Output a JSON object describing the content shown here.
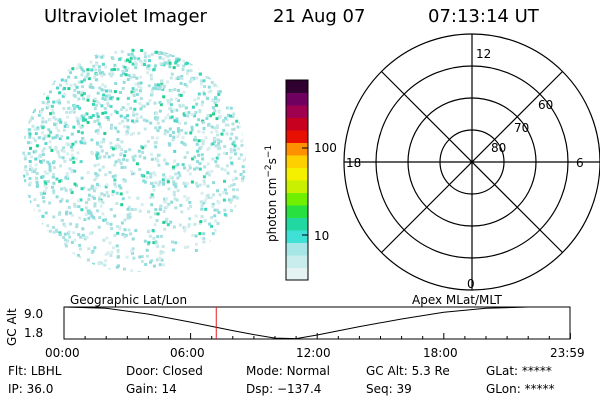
{
  "header": {
    "instrument": "Ultraviolet Imager",
    "date": "21 Aug 07",
    "time": "07:13:14 UT"
  },
  "colorbar": {
    "unit_prefix": "photon cm",
    "unit_exp1": "−2",
    "unit_mid": "s",
    "unit_exp2": "−1",
    "ticks": [
      {
        "label": "100",
        "value": 100
      },
      {
        "label": "10",
        "value": 10
      }
    ],
    "colors": [
      "#e6f3f3",
      "#c9ecec",
      "#a6e6e6",
      "#3fe0d6",
      "#20d8a0",
      "#28e040",
      "#70f000",
      "#c8f000",
      "#f5f000",
      "#ffd000",
      "#ff9000",
      "#e81000",
      "#c80020",
      "#a00050",
      "#700060",
      "#300030"
    ]
  },
  "polar_plot": {
    "mlt_labels": {
      "top": "12",
      "bottom": "0",
      "left": "18",
      "right": "6"
    },
    "lat_labels": [
      "60",
      "70",
      "80"
    ]
  },
  "track_plot": {
    "ylabel": "GC Alt",
    "yticks": [
      "9.0",
      "1.8"
    ],
    "left_title": "Geographic Lat/Lon",
    "right_title": "Apex MLat/MLT",
    "xticks": [
      "00:00",
      "06:00",
      "12:00",
      "18:00",
      "23:59"
    ],
    "cursor_color": "#e02020"
  },
  "chart_data": {
    "type": "line",
    "ylabel": "GC Alt",
    "x": [
      "00:00",
      "02:00",
      "04:00",
      "06:00",
      "08:00",
      "09:00",
      "10:00",
      "11:00",
      "12:00",
      "14:00",
      "16:00",
      "18:00",
      "20:00",
      "22:00",
      "23:59"
    ],
    "values": [
      9.0,
      8.7,
      7.4,
      5.6,
      3.7,
      2.8,
      2.0,
      1.9,
      2.7,
      4.6,
      6.3,
      7.8,
      8.7,
      9.0,
      9.0
    ],
    "ylim": [
      1.8,
      9.0
    ],
    "cursor_time": "07:13"
  },
  "status": {
    "row1": [
      {
        "label": "Flt:",
        "value": "LBHL"
      },
      {
        "label": "Door:",
        "value": "Closed"
      },
      {
        "label": "Mode:",
        "value": "Normal"
      },
      {
        "label": "GC Alt:",
        "value": "5.3 Re"
      },
      {
        "label": "GLat:",
        "value": "*****"
      }
    ],
    "row2": [
      {
        "label": "IP:",
        "value": "36.0"
      },
      {
        "label": "Gain:",
        "value": "14"
      },
      {
        "label": "Dsp:",
        "value": "−137.4"
      },
      {
        "label": "Seq:",
        "value": "39"
      },
      {
        "label": "GLon:",
        "value": "*****"
      }
    ]
  }
}
